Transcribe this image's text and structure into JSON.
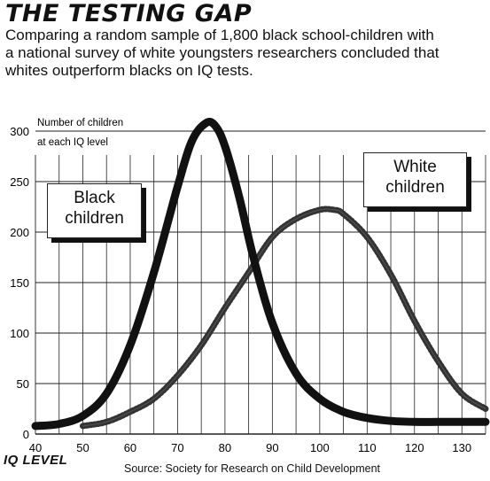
{
  "title": "THE TESTING GAP",
  "subtitle": "Comparing a random sample of 1,800 black school-children with a national survey of white youngsters researchers concluded that whites outperform blacks on IQ tests.",
  "source": "Source: Society for Research on Child Development",
  "chart_data": {
    "type": "line",
    "title": "THE TESTING GAP",
    "xlabel": "IQ LEVEL",
    "ylabel": "Number of children at each IQ level",
    "xlim": [
      40,
      135
    ],
    "ylim": [
      0,
      300
    ],
    "x_ticks": [
      40,
      50,
      60,
      70,
      80,
      90,
      100,
      110,
      120,
      130
    ],
    "y_ticks": [
      0,
      50,
      100,
      150,
      200,
      250,
      300
    ],
    "grid": true,
    "series": [
      {
        "name": "Black children",
        "style": "solid-thick",
        "color": "#111111",
        "x": [
          40,
          45,
          50,
          55,
          60,
          65,
          70,
          73,
          76,
          78,
          80,
          83,
          86,
          90,
          95,
          100,
          105,
          110,
          115,
          120,
          125,
          130,
          135
        ],
        "y": [
          8,
          10,
          18,
          40,
          88,
          160,
          245,
          290,
          308,
          305,
          285,
          235,
          175,
          110,
          60,
          35,
          22,
          16,
          13,
          12,
          12,
          12,
          12
        ]
      },
      {
        "name": "White children",
        "style": "dotted",
        "color": "#333333",
        "x": [
          50,
          55,
          60,
          65,
          70,
          75,
          80,
          85,
          90,
          95,
          100,
          103,
          105,
          110,
          115,
          120,
          125,
          130,
          135
        ],
        "y": [
          8,
          12,
          22,
          35,
          58,
          88,
          125,
          160,
          195,
          213,
          222,
          222,
          218,
          195,
          158,
          112,
          72,
          40,
          25
        ]
      }
    ]
  }
}
